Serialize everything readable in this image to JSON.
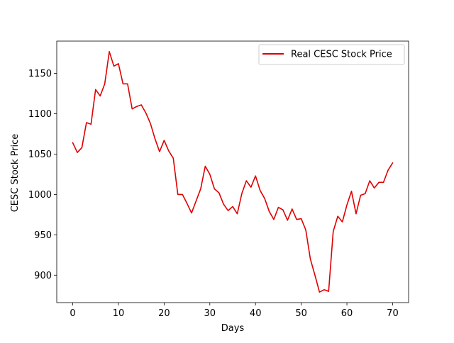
{
  "chart_data": {
    "type": "line",
    "title": "",
    "xlabel": "Days",
    "ylabel": "CESC Stock Price",
    "xlim": [
      -3.5,
      73.5
    ],
    "ylim": [
      866,
      1190
    ],
    "x_ticks": [
      0,
      10,
      20,
      30,
      40,
      50,
      60,
      70
    ],
    "y_ticks": [
      900,
      950,
      1000,
      1050,
      1100,
      1150
    ],
    "grid": false,
    "legend": {
      "placement": "top-right",
      "entries": [
        "Real CESC Stock Price"
      ]
    },
    "series": [
      {
        "name": "Real CESC Stock Price",
        "color": "#e00000",
        "x": [
          0,
          1,
          2,
          3,
          4,
          5,
          6,
          7,
          8,
          9,
          10,
          11,
          12,
          13,
          14,
          15,
          16,
          17,
          18,
          19,
          20,
          21,
          22,
          23,
          24,
          25,
          26,
          27,
          28,
          29,
          30,
          31,
          32,
          33,
          34,
          35,
          36,
          37,
          38,
          39,
          40,
          41,
          42,
          43,
          44,
          45,
          46,
          47,
          48,
          49,
          50,
          51,
          52,
          53,
          54,
          55,
          56,
          57,
          58,
          59,
          60,
          61,
          62,
          63,
          64,
          65,
          66,
          67,
          68,
          69,
          70
        ],
        "values": [
          1064,
          1052,
          1058,
          1089,
          1087,
          1130,
          1122,
          1137,
          1177,
          1159,
          1162,
          1137,
          1137,
          1106,
          1109,
          1111,
          1101,
          1088,
          1069,
          1053,
          1067,
          1054,
          1045,
          1000,
          1000,
          989,
          977,
          992,
          1007,
          1035,
          1025,
          1007,
          1002,
          988,
          980,
          985,
          976,
          1001,
          1017,
          1009,
          1023,
          1005,
          995,
          979,
          969,
          984,
          981,
          968,
          982,
          969,
          970,
          956,
          920,
          900,
          879,
          882,
          880,
          954,
          973,
          966,
          987,
          1004,
          976,
          999,
          1001,
          1017,
          1008,
          1015,
          1015,
          1030,
          1039
        ]
      }
    ]
  }
}
